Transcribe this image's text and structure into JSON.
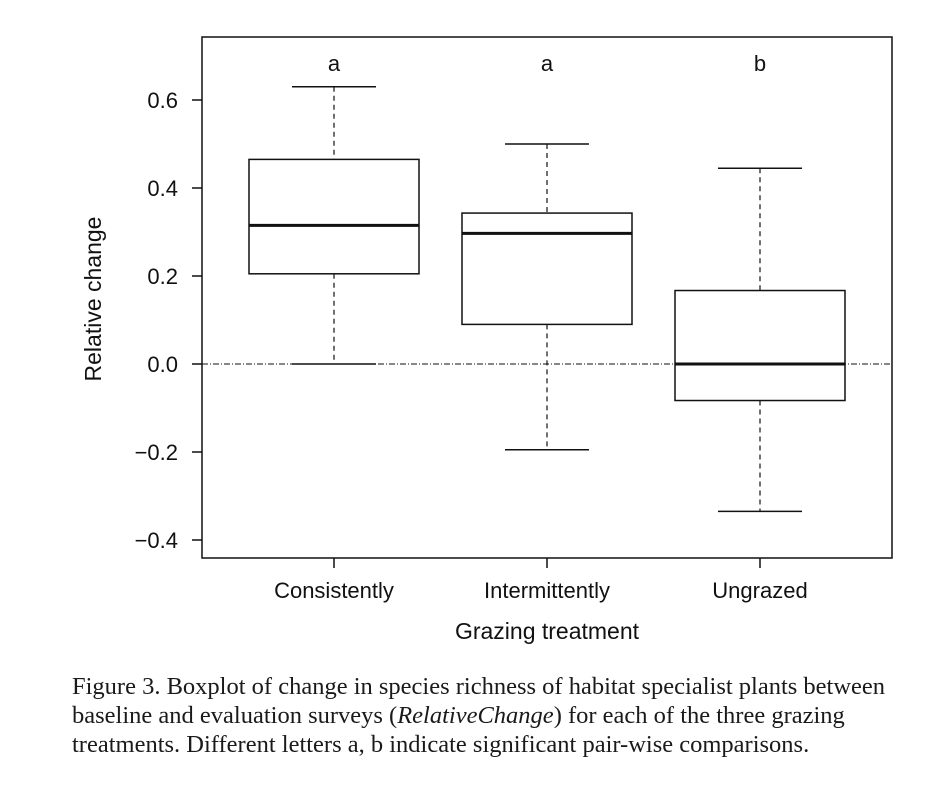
{
  "chart_data": {
    "type": "boxplot",
    "xlabel": "Grazing treatment",
    "ylabel": "Relative change",
    "ylim": [
      -0.45,
      0.75
    ],
    "yticks": [
      -0.4,
      -0.2,
      0.0,
      0.2,
      0.4,
      0.6
    ],
    "ytick_labels": [
      "−0.4",
      "−0.2",
      "0.0",
      "0.2",
      "0.4",
      "0.6"
    ],
    "reference_line": 0.0,
    "categories": [
      "Consistently",
      "Intermittently",
      "Ungrazed"
    ],
    "boxes": [
      {
        "category": "Consistently",
        "whisker_low": 0.0,
        "q1": 0.205,
        "median": 0.315,
        "q3": 0.465,
        "whisker_high": 0.63,
        "group_letter": "a"
      },
      {
        "category": "Intermittently",
        "whisker_low": -0.195,
        "q1": 0.09,
        "median": 0.297,
        "q3": 0.343,
        "whisker_high": 0.5,
        "group_letter": "a"
      },
      {
        "category": "Ungrazed",
        "whisker_low": -0.335,
        "q1": -0.083,
        "median": 0.0,
        "q3": 0.167,
        "whisker_high": 0.445,
        "group_letter": "b"
      }
    ],
    "grid": false,
    "legend": "none"
  },
  "caption": {
    "part1": "Figure 3. Boxplot of change in species richness of habitat specialist plants between baseline and evaluation surveys (",
    "italic": "RelativeChange",
    "part2": ") for each of the three grazing treatments. Different letters a, b indicate significant pair-wise comparisons."
  }
}
